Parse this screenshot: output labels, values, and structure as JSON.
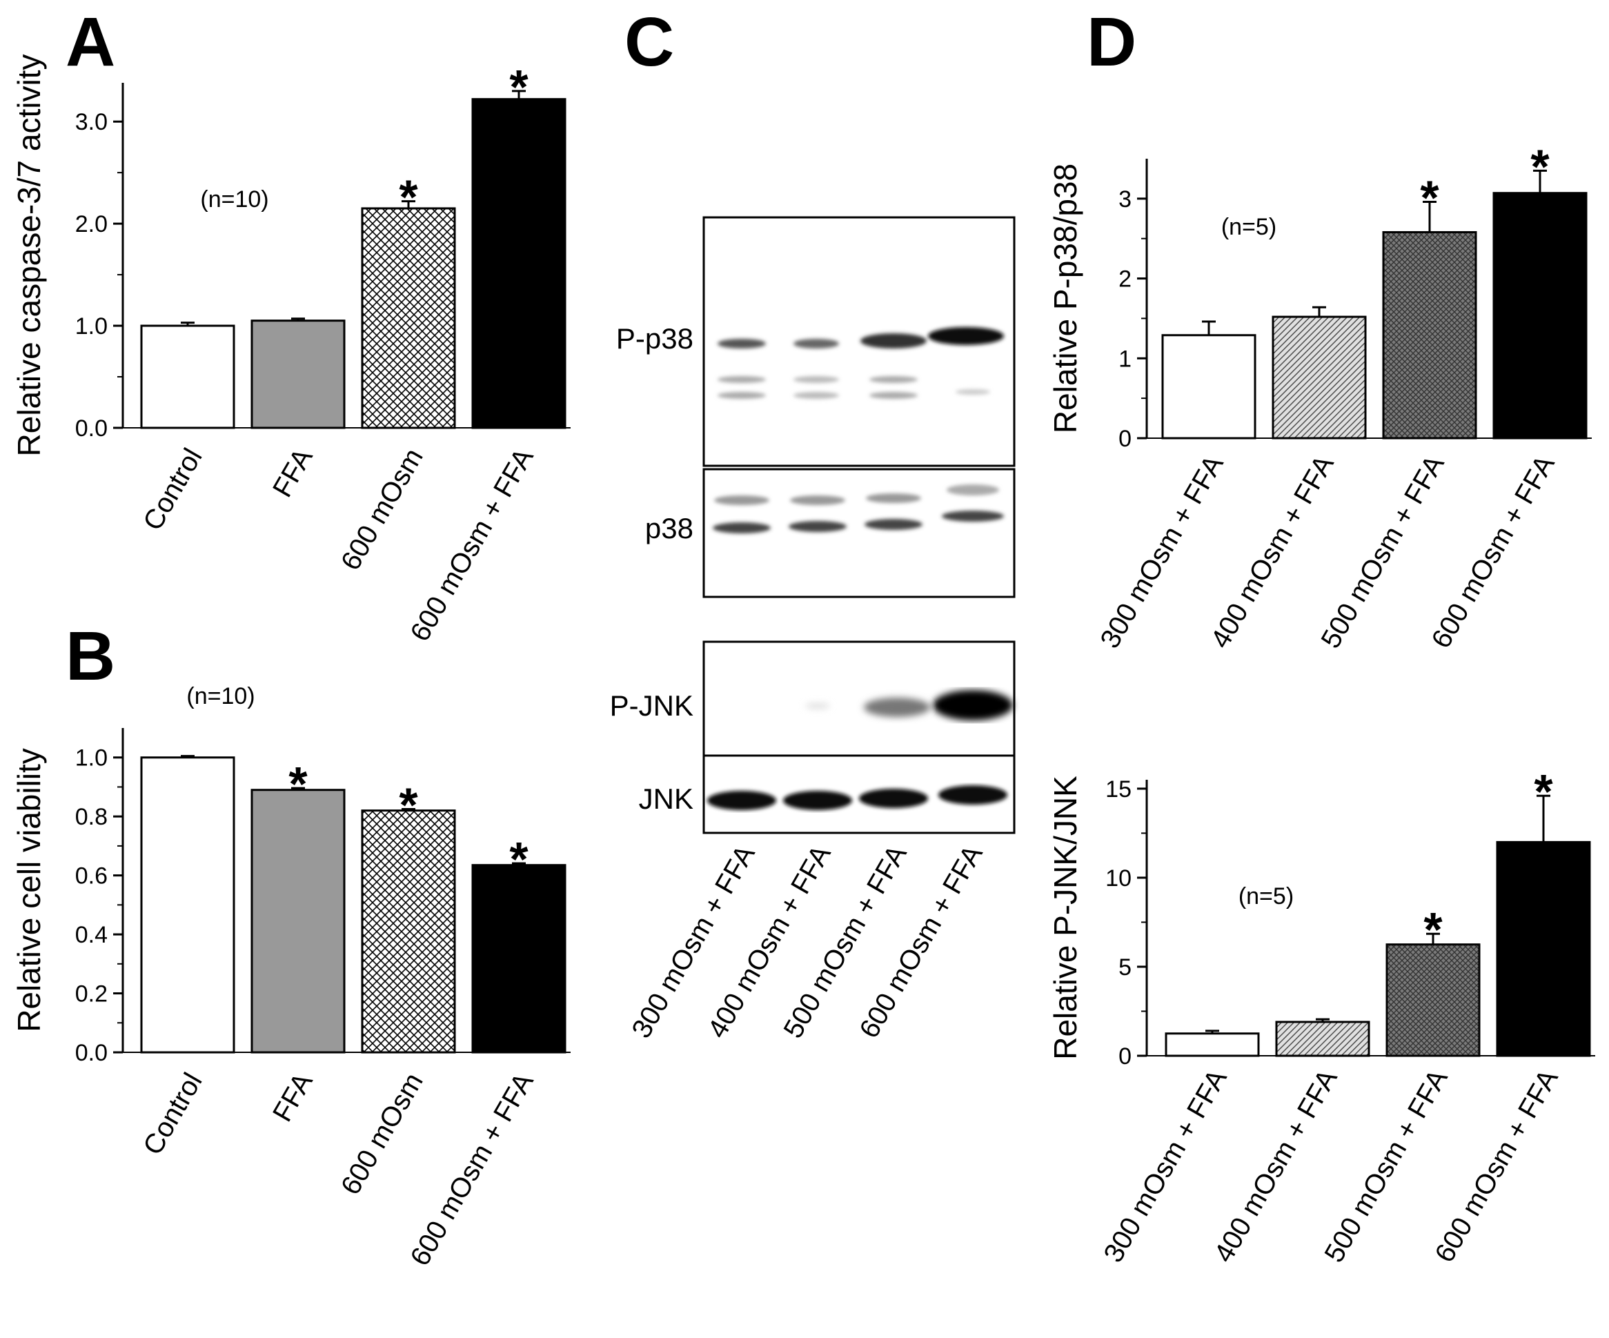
{
  "figure": {
    "panel_c_label": "C",
    "blot": {
      "labels": [
        "P-p38",
        "p38",
        "P-JNK",
        "JNK"
      ],
      "lanes": [
        "300 mOsm + FFA",
        "400 mOsm + FFA",
        "500 mOsm + FFA",
        "600 mOsm + FFA"
      ]
    }
  },
  "colors": {
    "white": "#ffffff",
    "grey": "#999999",
    "black": "#000000",
    "hatch_bg": "#f2f2f2",
    "dense_bg": "#8a8a8a"
  },
  "chart_data": [
    {
      "panel": "A",
      "type": "bar",
      "title": "",
      "ylabel": "Relative caspase-3/7 activity",
      "categories": [
        "Control",
        "FFA",
        "600 mOsm",
        "600 mOsm + FFA"
      ],
      "values": [
        1.0,
        1.05,
        2.15,
        3.22
      ],
      "errors": [
        0.03,
        0.02,
        0.07,
        0.08
      ],
      "significant": [
        false,
        false,
        true,
        true
      ],
      "fills": [
        "white",
        "grey",
        "crosshatch",
        "black"
      ],
      "ylim": [
        0,
        3.38
      ],
      "yticks": [
        0.0,
        1.0,
        2.0,
        3.0
      ],
      "ytick_labels": [
        "0.0",
        "1.0",
        "2.0",
        "3.0"
      ],
      "annotation": "(n=10)",
      "star_label": "*"
    },
    {
      "panel": "B",
      "type": "bar",
      "title": "",
      "ylabel": "Relative cell viability",
      "categories": [
        "Control",
        "FFA",
        "600 mOsm",
        "600 mOsm + FFA"
      ],
      "values": [
        1.0,
        0.89,
        0.82,
        0.635
      ],
      "errors": [
        0.005,
        0.006,
        0.005,
        0.006
      ],
      "significant": [
        false,
        true,
        true,
        true
      ],
      "fills": [
        "white",
        "grey",
        "crosshatch",
        "black"
      ],
      "ylim": [
        0,
        1.1
      ],
      "yticks": [
        0.0,
        0.2,
        0.4,
        0.6,
        0.8,
        1.0
      ],
      "ytick_labels": [
        "0.0",
        "0.2",
        "0.4",
        "0.6",
        "0.8",
        "1.0"
      ],
      "annotation": "(n=10)",
      "star_label": "*"
    },
    {
      "panel": "D",
      "type": "bar",
      "title": "",
      "ylabel": "Relative P-p38/p38",
      "categories": [
        "300 mOsm + FFA",
        "400 mOsm + FFA",
        "500 mOsm + FFA",
        "600 mOsm + FFA"
      ],
      "values": [
        1.29,
        1.52,
        2.58,
        3.07
      ],
      "errors": [
        0.17,
        0.12,
        0.38,
        0.28
      ],
      "significant": [
        false,
        false,
        true,
        true
      ],
      "fills": [
        "white",
        "hatch",
        "densehatch",
        "black"
      ],
      "ylim": [
        0,
        3.5
      ],
      "yticks": [
        0,
        1,
        2,
        3
      ],
      "ytick_labels": [
        "0",
        "1",
        "2",
        "3"
      ],
      "annotation": "(n=5)",
      "star_label": "*"
    },
    {
      "panel": "",
      "type": "bar",
      "title": "",
      "ylabel": "Relative P-JNK/JNK",
      "categories": [
        "300 mOsm + FFA",
        "400 mOsm + FFA",
        "500 mOsm + FFA",
        "600 mOsm + FFA"
      ],
      "values": [
        1.25,
        1.9,
        6.25,
        12.0
      ],
      "errors": [
        0.15,
        0.15,
        0.6,
        2.6
      ],
      "significant": [
        false,
        false,
        true,
        true
      ],
      "fills": [
        "white",
        "hatch",
        "densehatch",
        "black"
      ],
      "ylim": [
        0,
        15.5
      ],
      "yticks": [
        0,
        5,
        10,
        15
      ],
      "ytick_labels": [
        "0",
        "5",
        "10",
        "15"
      ],
      "annotation": "(n=5)",
      "star_label": "*"
    }
  ]
}
